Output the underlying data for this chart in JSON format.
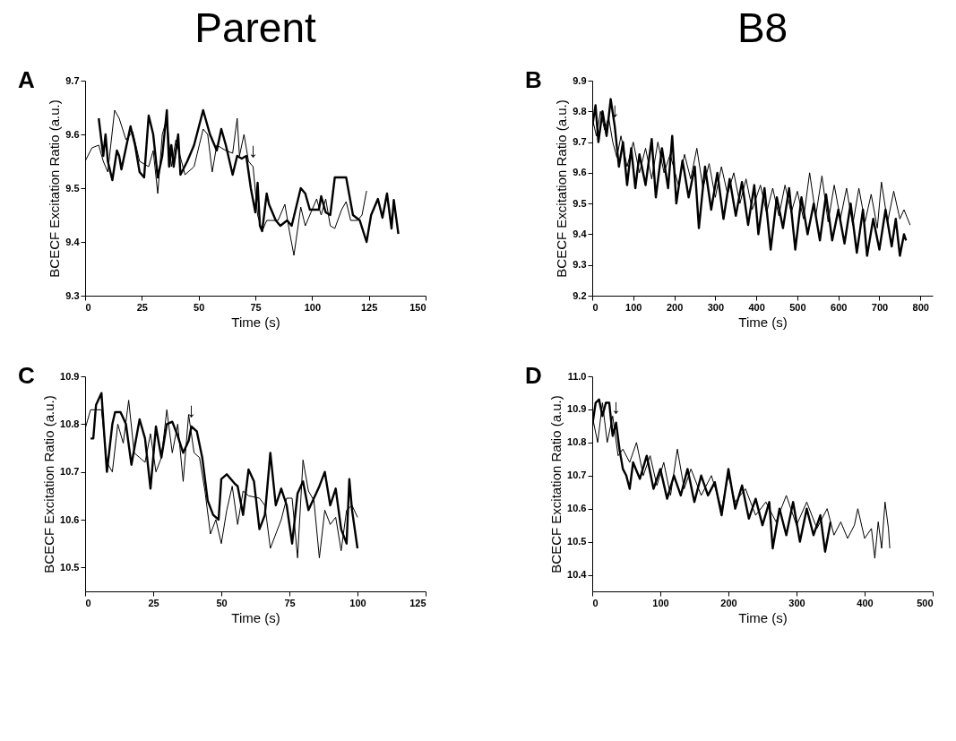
{
  "chart_data": [
    {
      "type": "line",
      "title": "A",
      "xlabel": "Time (s)",
      "ylabel": "BCECF Excitation Ratio (a.u.)",
      "xlim": [
        0,
        150
      ],
      "xticks": [
        0,
        25,
        50,
        75,
        100,
        125,
        150
      ],
      "ylim": [
        9.3,
        9.7
      ],
      "yticks": [
        9.3,
        9.4,
        9.5,
        9.6,
        9.7
      ],
      "grid": false,
      "annotations": [
        "Parent",
        {
          "text": "↓",
          "x": 74,
          "y": 9.54
        }
      ],
      "series": [
        {
          "color": "#000000",
          "x": [
            6,
            8,
            9,
            10,
            12,
            14,
            15,
            16,
            20,
            22,
            24,
            26,
            28,
            30,
            32,
            34,
            36,
            37,
            38,
            39,
            41,
            42,
            45,
            48,
            52,
            55,
            58,
            60,
            62,
            65,
            67,
            69,
            71,
            73,
            75,
            76,
            77,
            78,
            80,
            81,
            84,
            86,
            89,
            91,
            95,
            97,
            99,
            103,
            104,
            106,
            108,
            110,
            115,
            118,
            121,
            124,
            126,
            129,
            131,
            133,
            135,
            136,
            138
          ],
          "values": [
            9.63,
            9.56,
            9.6,
            9.55,
            9.515,
            9.57,
            9.56,
            9.535,
            9.615,
            9.58,
            9.53,
            9.52,
            9.635,
            9.6,
            9.52,
            9.56,
            9.645,
            9.54,
            9.58,
            9.54,
            9.6,
            9.525,
            9.55,
            9.58,
            9.645,
            9.6,
            9.57,
            9.61,
            9.58,
            9.525,
            9.56,
            9.555,
            9.56,
            9.5,
            9.455,
            9.51,
            9.43,
            9.42,
            9.49,
            9.47,
            9.44,
            9.43,
            9.44,
            9.43,
            9.5,
            9.49,
            9.46,
            9.46,
            9.485,
            9.455,
            9.45,
            9.52,
            9.52,
            9.45,
            9.44,
            9.4,
            9.45,
            9.48,
            9.445,
            9.49,
            9.425,
            9.478,
            9.415
          ]
        },
        {
          "color": "#000000",
          "x": [
            0,
            3,
            6,
            8,
            10,
            13,
            15,
            18,
            21,
            24,
            28,
            30,
            32,
            34,
            36,
            38,
            40,
            44,
            48,
            52,
            54,
            56,
            58,
            62,
            65,
            67,
            68,
            70,
            72,
            74,
            76,
            78,
            80,
            82,
            85,
            88,
            90,
            92,
            95,
            97,
            100,
            102,
            104,
            106,
            108,
            110,
            113,
            115,
            117,
            120,
            122,
            124
          ],
          "values": [
            9.55,
            9.575,
            9.58,
            9.55,
            9.53,
            9.645,
            9.63,
            9.59,
            9.605,
            9.55,
            9.54,
            9.57,
            9.49,
            9.6,
            9.63,
            9.54,
            9.59,
            9.525,
            9.54,
            9.61,
            9.6,
            9.53,
            9.58,
            9.57,
            9.565,
            9.63,
            9.56,
            9.6,
            9.55,
            9.54,
            9.45,
            9.42,
            9.44,
            9.44,
            9.44,
            9.47,
            9.42,
            9.375,
            9.465,
            9.43,
            9.46,
            9.48,
            9.45,
            9.48,
            9.43,
            9.425,
            9.46,
            9.475,
            9.44,
            9.44,
            9.45,
            9.495
          ]
        }
      ]
    },
    {
      "type": "line",
      "title": "B",
      "xlabel": "Time (s)",
      "ylabel": "BCECF Excitation Ratio (a.u.)",
      "xlim": [
        0,
        830
      ],
      "xticks": [
        0,
        100,
        200,
        300,
        400,
        500,
        600,
        700,
        800
      ],
      "ylim": [
        9.2,
        9.9
      ],
      "yticks": [
        9.2,
        9.3,
        9.4,
        9.5,
        9.6,
        9.7,
        9.8,
        9.9
      ],
      "grid": false,
      "annotations": [
        "B8",
        {
          "text": "↓",
          "x": 55,
          "y": 9.75
        }
      ],
      "series": [
        {
          "color": "#000000",
          "x": [
            0,
            8,
            15,
            25,
            35,
            45,
            55,
            65,
            75,
            85,
            95,
            105,
            115,
            130,
            145,
            155,
            170,
            185,
            195,
            205,
            220,
            235,
            250,
            260,
            275,
            290,
            305,
            320,
            335,
            350,
            365,
            380,
            395,
            405,
            420,
            435,
            450,
            465,
            480,
            495,
            510,
            525,
            540,
            555,
            570,
            585,
            600,
            615,
            630,
            645,
            660,
            670,
            685,
            700,
            715,
            730,
            740,
            750,
            760,
            765
          ],
          "values": [
            9.75,
            9.82,
            9.7,
            9.8,
            9.72,
            9.84,
            9.75,
            9.62,
            9.7,
            9.56,
            9.68,
            9.55,
            9.66,
            9.56,
            9.71,
            9.52,
            9.68,
            9.55,
            9.72,
            9.5,
            9.64,
            9.52,
            9.62,
            9.42,
            9.62,
            9.48,
            9.6,
            9.45,
            9.58,
            9.46,
            9.57,
            9.43,
            9.56,
            9.4,
            9.55,
            9.35,
            9.52,
            9.42,
            9.55,
            9.35,
            9.52,
            9.4,
            9.5,
            9.38,
            9.53,
            9.38,
            9.48,
            9.37,
            9.5,
            9.34,
            9.48,
            9.33,
            9.45,
            9.35,
            9.48,
            9.36,
            9.45,
            9.33,
            9.4,
            9.38
          ]
        },
        {
          "color": "#000000",
          "x": [
            0,
            10,
            20,
            30,
            40,
            50,
            60,
            70,
            85,
            100,
            115,
            130,
            145,
            160,
            175,
            190,
            210,
            225,
            240,
            255,
            270,
            285,
            300,
            315,
            330,
            345,
            360,
            375,
            390,
            410,
            425,
            440,
            455,
            470,
            485,
            500,
            515,
            530,
            545,
            560,
            575,
            590,
            605,
            620,
            635,
            650,
            665,
            680,
            695,
            705,
            720,
            735,
            750,
            760,
            775
          ],
          "values": [
            9.78,
            9.72,
            9.8,
            9.74,
            9.78,
            9.7,
            9.65,
            9.72,
            9.62,
            9.7,
            9.6,
            9.68,
            9.58,
            9.7,
            9.6,
            9.66,
            9.56,
            9.66,
            9.58,
            9.68,
            9.55,
            9.63,
            9.52,
            9.62,
            9.53,
            9.6,
            9.5,
            9.58,
            9.48,
            9.56,
            9.47,
            9.55,
            9.46,
            9.56,
            9.47,
            9.54,
            9.45,
            9.6,
            9.46,
            9.59,
            9.44,
            9.56,
            9.45,
            9.55,
            9.43,
            9.55,
            9.44,
            9.53,
            9.42,
            9.57,
            9.44,
            9.54,
            9.45,
            9.48,
            9.43
          ]
        }
      ]
    },
    {
      "type": "line",
      "title": "C",
      "xlabel": "Time (s)",
      "ylabel": "BCECF Excitation Ratio (a.u.)",
      "xlim": [
        0,
        125
      ],
      "xticks": [
        0,
        25,
        50,
        75,
        100,
        125
      ],
      "ylim": [
        10.45,
        10.9
      ],
      "yticks": [
        10.5,
        10.6,
        10.7,
        10.8,
        10.9
      ],
      "grid": false,
      "annotations": [
        {
          "text": "↓",
          "x": 39,
          "y": 10.795
        }
      ],
      "series": [
        {
          "color": "#000000",
          "x": [
            2,
            3,
            4,
            6,
            7,
            8,
            9,
            10,
            11,
            13,
            15,
            17,
            20,
            22,
            24,
            26,
            28,
            30,
            32,
            34,
            36,
            38,
            39,
            41,
            43,
            45,
            47,
            49,
            50,
            52,
            55,
            56,
            58,
            60,
            62,
            64,
            66,
            68,
            70,
            72,
            74,
            76,
            78,
            80,
            82,
            86,
            88,
            90,
            92,
            94,
            96,
            97,
            98,
            100
          ],
          "values": [
            10.77,
            10.77,
            10.84,
            10.865,
            10.78,
            10.7,
            10.75,
            10.8,
            10.825,
            10.825,
            10.8,
            10.715,
            10.81,
            10.77,
            10.665,
            10.795,
            10.73,
            10.8,
            10.805,
            10.775,
            10.74,
            10.765,
            10.795,
            10.785,
            10.73,
            10.64,
            10.61,
            10.6,
            10.685,
            10.695,
            10.675,
            10.67,
            10.61,
            10.705,
            10.68,
            10.58,
            10.61,
            10.74,
            10.63,
            10.665,
            10.63,
            10.55,
            10.655,
            10.68,
            10.62,
            10.67,
            10.7,
            10.63,
            10.665,
            10.58,
            10.55,
            10.685,
            10.62,
            10.54
          ]
        },
        {
          "color": "#000000",
          "x": [
            0,
            2,
            4,
            6,
            8,
            10,
            12,
            14,
            16,
            18,
            20,
            22,
            24,
            26,
            28,
            30,
            32,
            34,
            36,
            38,
            40,
            42,
            44,
            46,
            48,
            50,
            52,
            54,
            56,
            58,
            60,
            64,
            66,
            68,
            72,
            74,
            76,
            78,
            80,
            82,
            84,
            86,
            88,
            90,
            92,
            94,
            96,
            98,
            100
          ],
          "values": [
            10.79,
            10.83,
            10.83,
            10.83,
            10.72,
            10.7,
            10.8,
            10.76,
            10.85,
            10.74,
            10.73,
            10.72,
            10.78,
            10.7,
            10.73,
            10.83,
            10.74,
            10.8,
            10.68,
            10.82,
            10.74,
            10.73,
            10.66,
            10.57,
            10.6,
            10.55,
            10.62,
            10.67,
            10.59,
            10.66,
            10.65,
            10.645,
            10.63,
            10.54,
            10.6,
            10.645,
            10.645,
            10.52,
            10.725,
            10.66,
            10.64,
            10.52,
            10.62,
            10.59,
            10.605,
            10.535,
            10.62,
            10.63,
            10.605
          ]
        }
      ]
    },
    {
      "type": "line",
      "title": "D",
      "xlabel": "Time (s)",
      "ylabel": "BCECF Excitation Ratio (a.u.)",
      "xlim": [
        0,
        500
      ],
      "xticks": [
        0,
        100,
        200,
        300,
        400,
        500
      ],
      "ylim": [
        10.35,
        11.0
      ],
      "yticks": [
        10.4,
        10.5,
        10.6,
        10.7,
        10.8,
        10.9,
        {
          "value": 11,
          "label": "11.0"
        }
      ],
      "grid": false,
      "annotations": [
        {
          "text": "↓",
          "x": 35,
          "y": 10.86
        }
      ],
      "series": [
        {
          "color": "#000000",
          "x": [
            0,
            5,
            10,
            15,
            20,
            25,
            30,
            35,
            40,
            45,
            50,
            55,
            60,
            70,
            80,
            90,
            100,
            110,
            120,
            130,
            140,
            150,
            160,
            170,
            180,
            190,
            200,
            210,
            220,
            230,
            240,
            250,
            260,
            265,
            275,
            285,
            295,
            305,
            315,
            325,
            335,
            342,
            350
          ],
          "values": [
            10.85,
            10.92,
            10.93,
            10.88,
            10.92,
            10.92,
            10.82,
            10.86,
            10.78,
            10.72,
            10.7,
            10.66,
            10.74,
            10.69,
            10.76,
            10.66,
            10.72,
            10.63,
            10.7,
            10.64,
            10.72,
            10.62,
            10.7,
            10.64,
            10.68,
            10.58,
            10.72,
            10.6,
            10.67,
            10.57,
            10.63,
            10.55,
            10.62,
            10.48,
            10.6,
            10.52,
            10.62,
            10.5,
            10.6,
            10.52,
            10.58,
            10.47,
            10.56
          ]
        },
        {
          "color": "#000000",
          "x": [
            0,
            8,
            15,
            22,
            30,
            38,
            45,
            55,
            65,
            75,
            85,
            95,
            105,
            115,
            125,
            135,
            145,
            160,
            175,
            190,
            200,
            210,
            225,
            240,
            255,
            270,
            285,
            300,
            315,
            330,
            345,
            355,
            365,
            375,
            385,
            390,
            400,
            410,
            415,
            420,
            425,
            430,
            435,
            437
          ],
          "values": [
            10.88,
            10.8,
            10.92,
            10.8,
            10.88,
            10.76,
            10.78,
            10.74,
            10.8,
            10.7,
            10.76,
            10.67,
            10.74,
            10.64,
            10.78,
            10.66,
            10.72,
            10.64,
            10.7,
            10.6,
            10.7,
            10.62,
            10.66,
            10.58,
            10.62,
            10.56,
            10.64,
            10.55,
            10.62,
            10.54,
            10.6,
            10.52,
            10.56,
            10.51,
            10.55,
            10.6,
            10.51,
            10.54,
            10.45,
            10.56,
            10.48,
            10.62,
            10.54,
            10.48
          ]
        }
      ]
    }
  ]
}
